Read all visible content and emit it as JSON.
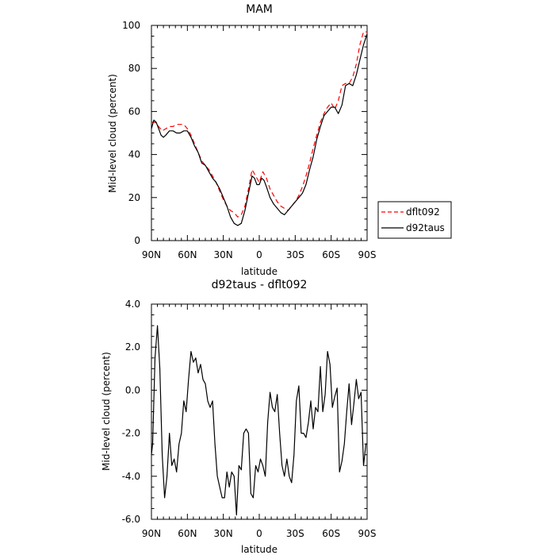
{
  "chart_data": [
    {
      "type": "line",
      "title": "MAM",
      "xlabel": "latitude",
      "ylabel": "Mid-level cloud (percent)",
      "xlim": [
        -90,
        90
      ],
      "ylim": [
        0,
        100
      ],
      "x_ticks": [
        -90,
        -60,
        -30,
        0,
        30,
        60,
        90
      ],
      "x_tick_labels": [
        "90N",
        "60N",
        "30N",
        "0",
        "30S",
        "60S",
        "90S"
      ],
      "y_ticks": [
        0,
        20,
        40,
        60,
        80,
        100
      ],
      "y_tick_labels": [
        "0",
        "20",
        "40",
        "60",
        "80",
        "100"
      ],
      "legend": {
        "placement": "right",
        "entries": [
          "dflt092",
          "d92taus"
        ]
      },
      "series": [
        {
          "name": "dflt092",
          "color": "#ff0000",
          "dash": "dashed",
          "x": [
            -90,
            -87,
            -84,
            -81,
            -78,
            -75,
            -72,
            -69,
            -66,
            -63,
            -60,
            -57,
            -54,
            -51,
            -48,
            -45,
            -42,
            -39,
            -36,
            -33,
            -30,
            -27,
            -24,
            -21,
            -18,
            -15,
            -12,
            -9,
            -6,
            -3,
            0,
            3,
            6,
            9,
            12,
            15,
            18,
            21,
            24,
            27,
            30,
            33,
            36,
            39,
            42,
            45,
            48,
            51,
            54,
            57,
            60,
            63,
            66,
            69,
            72,
            75,
            78,
            81,
            84,
            87,
            90
          ],
          "y": [
            55,
            55,
            53,
            51,
            52,
            53,
            53,
            54,
            54,
            54,
            52,
            49,
            45,
            41,
            37,
            35,
            33,
            30,
            27,
            23,
            19,
            16,
            14,
            13,
            11,
            12,
            16,
            24,
            33,
            30,
            27,
            32,
            29,
            24,
            21,
            18,
            16,
            15,
            14,
            16,
            18,
            21,
            25,
            30,
            36,
            43,
            49,
            55,
            59,
            62,
            64,
            61,
            65,
            72,
            73,
            73,
            76,
            82,
            91,
            97,
            97
          ]
        },
        {
          "name": "d92taus",
          "color": "#000000",
          "dash": "solid",
          "x": [
            -90,
            -88,
            -86,
            -84,
            -82,
            -80,
            -78,
            -75,
            -72,
            -69,
            -66,
            -63,
            -60,
            -57,
            -54,
            -51,
            -48,
            -45,
            -42,
            -39,
            -36,
            -33,
            -30,
            -27,
            -24,
            -21,
            -18,
            -15,
            -12,
            -9,
            -6,
            -4,
            -2,
            0,
            2,
            4,
            6,
            9,
            12,
            15,
            18,
            21,
            24,
            27,
            30,
            33,
            36,
            39,
            42,
            45,
            48,
            51,
            54,
            57,
            60,
            63,
            66,
            69,
            72,
            75,
            78,
            81,
            84,
            87,
            90
          ],
          "y": [
            52,
            56,
            55,
            52,
            49,
            48,
            49,
            51,
            51,
            50,
            50,
            51,
            51,
            48,
            44,
            41,
            36,
            35,
            32,
            29,
            27,
            24,
            20,
            16,
            11,
            8,
            7,
            8,
            14,
            22,
            30,
            29,
            26,
            26,
            29,
            28,
            25,
            20,
            17,
            15,
            13,
            12,
            14,
            16,
            18,
            20,
            22,
            26,
            33,
            39,
            47,
            53,
            58,
            60,
            62,
            62,
            59,
            63,
            72,
            73,
            72,
            77,
            84,
            91,
            96
          ]
        }
      ]
    },
    {
      "type": "line",
      "title": "d92taus - dflt092",
      "xlabel": "latitude",
      "ylabel": "Mid-level cloud (percent)",
      "xlim": [
        -90,
        90
      ],
      "ylim": [
        -6,
        4
      ],
      "x_ticks": [
        -90,
        -60,
        -30,
        0,
        30,
        60,
        90
      ],
      "x_tick_labels": [
        "90N",
        "60N",
        "30N",
        "0",
        "30S",
        "60S",
        "90S"
      ],
      "y_ticks": [
        -6,
        -4,
        -2,
        0,
        2,
        4
      ],
      "y_tick_labels": [
        "-6.0",
        "-4.0",
        "-2.0",
        "0.0",
        "2.0",
        "4.0"
      ],
      "series": [
        {
          "color": "#000000",
          "dash": "solid",
          "x": [
            -90,
            -89,
            -87,
            -85,
            -83,
            -81,
            -79,
            -77,
            -75,
            -73,
            -71,
            -69,
            -67,
            -65,
            -63,
            -61,
            -59,
            -57,
            -55,
            -53,
            -51,
            -49,
            -47,
            -45,
            -43,
            -41,
            -39,
            -37,
            -35,
            -33,
            -31,
            -29,
            -27,
            -25,
            -23,
            -21,
            -19,
            -17,
            -15,
            -13,
            -11,
            -9,
            -7,
            -5,
            -3,
            -1,
            1,
            3,
            5,
            7,
            9,
            11,
            13,
            15,
            17,
            19,
            21,
            23,
            25,
            27,
            29,
            31,
            33,
            35,
            37,
            39,
            41,
            43,
            45,
            47,
            49,
            51,
            53,
            55,
            57,
            59,
            61,
            63,
            65,
            67,
            69,
            71,
            73,
            75,
            77,
            79,
            81,
            83,
            85,
            87,
            89,
            90
          ],
          "y": [
            -3.0,
            -2.5,
            1.5,
            3.0,
            1.0,
            -3.0,
            -5.0,
            -4.0,
            -2.0,
            -3.5,
            -3.2,
            -3.8,
            -2.5,
            -2.0,
            -0.5,
            -1.0,
            0.5,
            1.8,
            1.3,
            1.5,
            0.8,
            1.2,
            0.5,
            0.3,
            -0.5,
            -0.8,
            -0.5,
            -2.5,
            -4.0,
            -4.5,
            -5.0,
            -5.0,
            -3.8,
            -4.5,
            -3.8,
            -4.0,
            -5.8,
            -3.5,
            -3.7,
            -2.0,
            -1.8,
            -2.0,
            -4.8,
            -5.0,
            -3.5,
            -3.8,
            -3.2,
            -3.5,
            -4.0,
            -1.5,
            -0.1,
            -0.8,
            -1.0,
            -0.2,
            -2.0,
            -3.5,
            -4.0,
            -3.2,
            -4.0,
            -4.3,
            -3.0,
            -0.5,
            0.2,
            -2.0,
            -2.0,
            -2.2,
            -1.5,
            -0.5,
            -1.8,
            -0.8,
            -1.0,
            1.1,
            -1.0,
            -0.2,
            1.8,
            1.2,
            -0.8,
            -0.3,
            0.1,
            -3.8,
            -3.3,
            -2.5,
            -1.0,
            0.3,
            -1.6,
            -0.6,
            0.5,
            -0.4,
            -0.1,
            -3.5,
            -2.5,
            -2.5
          ]
        }
      ]
    }
  ]
}
